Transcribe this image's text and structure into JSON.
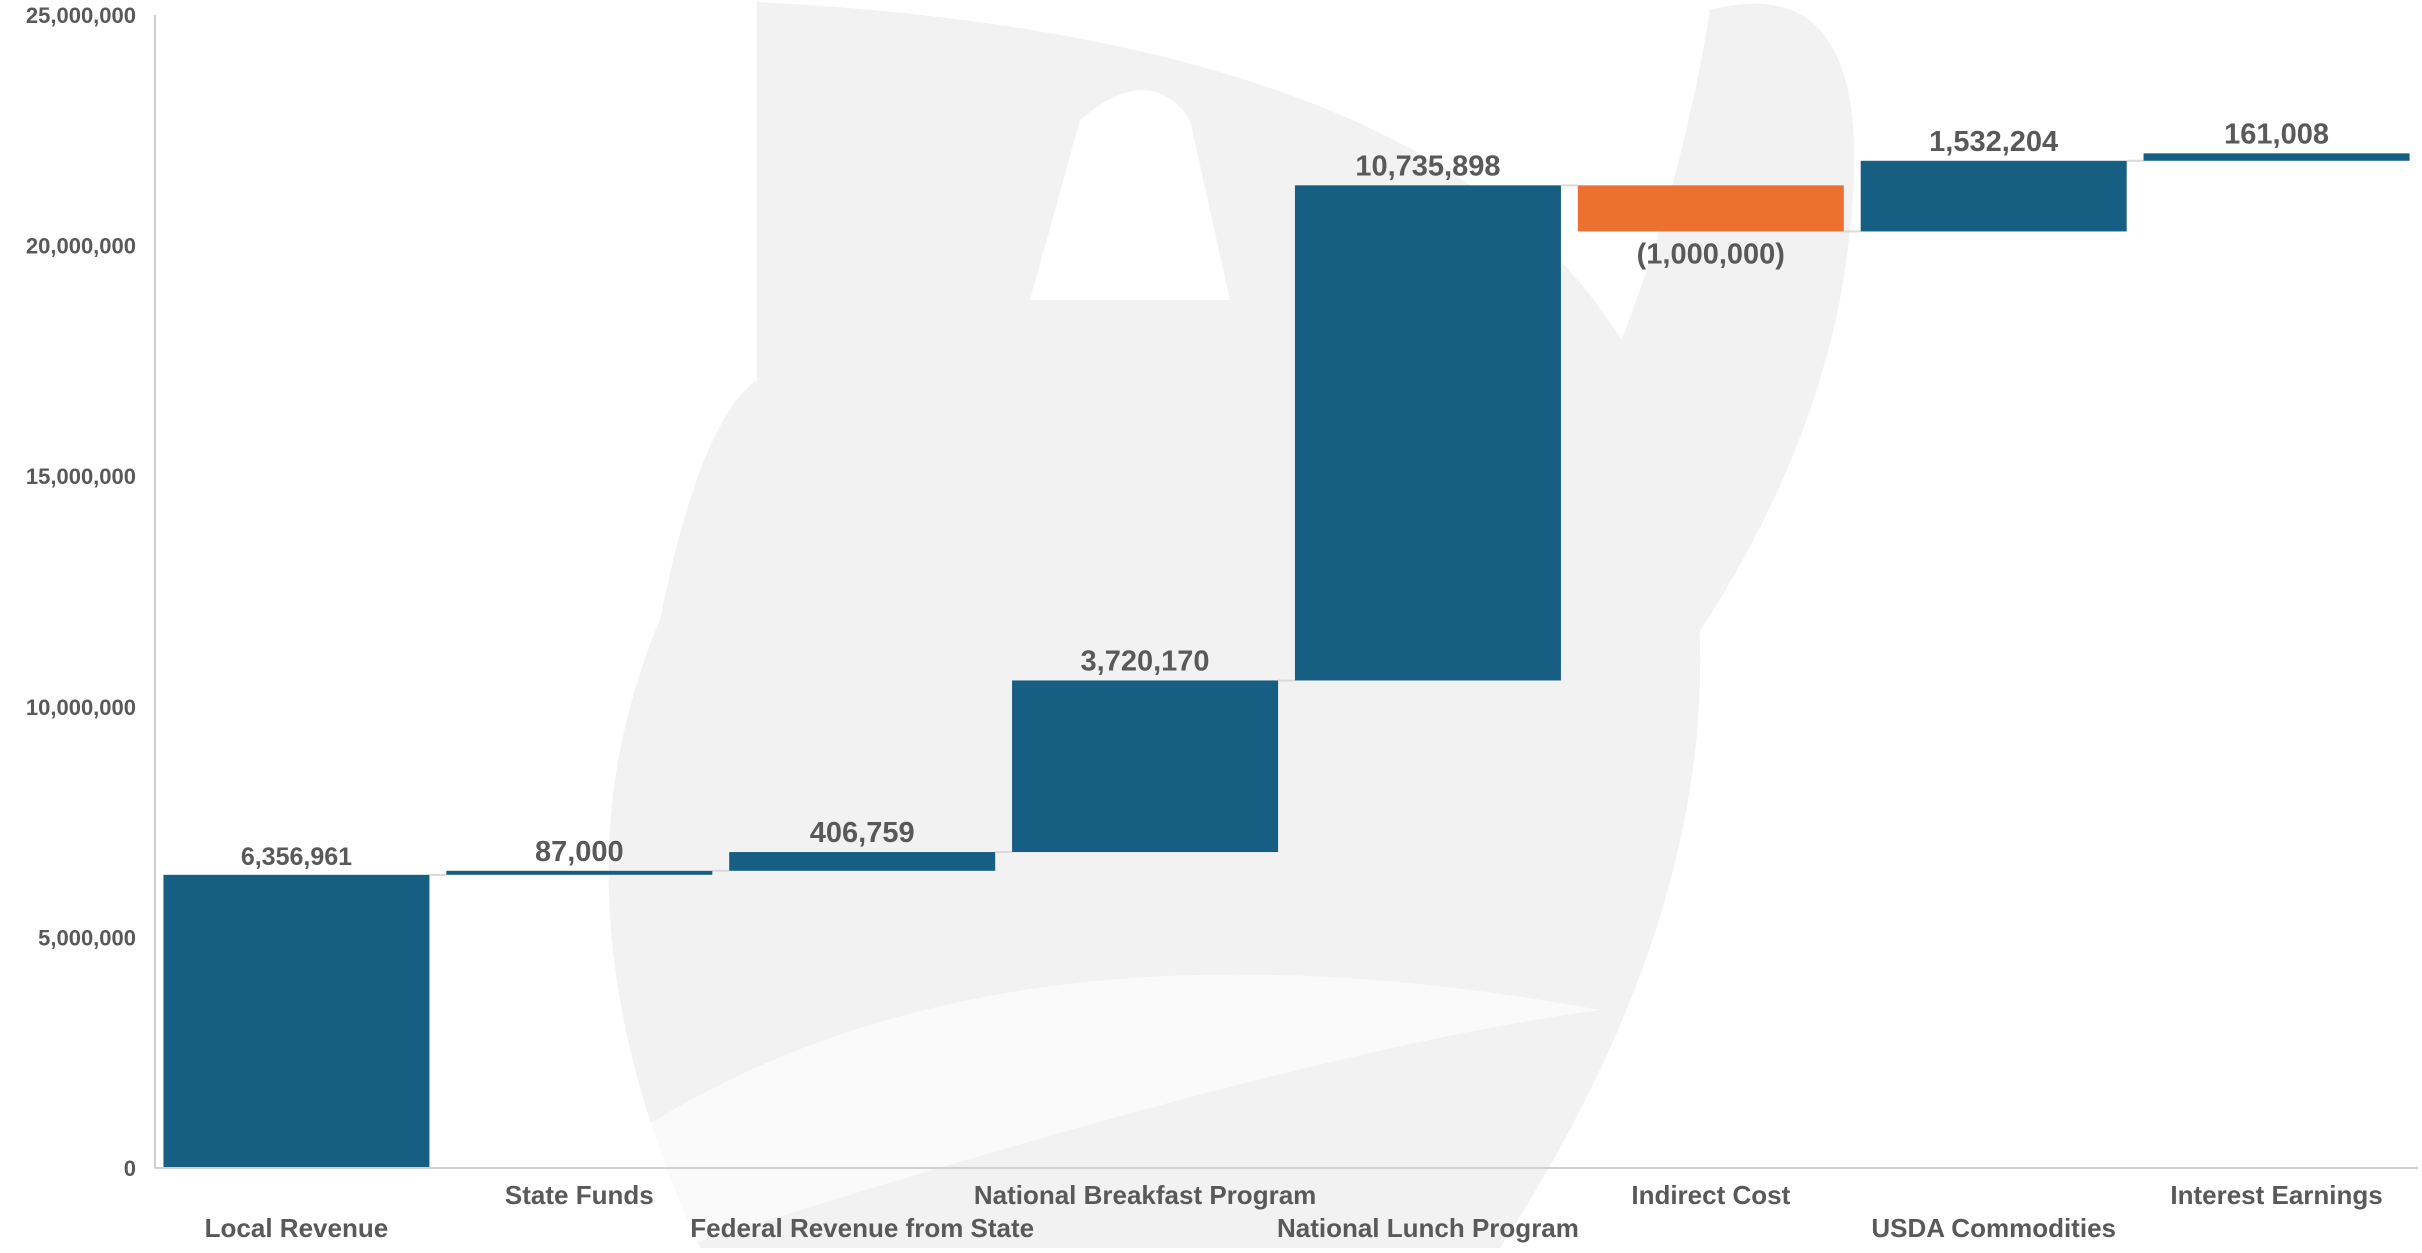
{
  "colors": {
    "increase": "#175E83",
    "decrease": "#EC7130",
    "axis": "#D0D0D0",
    "connector": "#D9D9D9",
    "label": "#595959",
    "watermark": "#F2F2F2"
  },
  "chart_data": {
    "type": "bar",
    "subtype": "waterfall",
    "title": "",
    "xlabel": "",
    "ylabel": "",
    "ylim": [
      0,
      25000000
    ],
    "y_ticks": [
      0,
      5000000,
      10000000,
      15000000,
      20000000,
      25000000
    ],
    "y_tick_labels": [
      "0",
      "5,000,000",
      "10,000,000",
      "15,000,000",
      "20,000,000",
      "25,000,000"
    ],
    "grid": false,
    "legend": "none",
    "categories": [
      "Local Revenue",
      "State Funds",
      "Federal Revenue from State",
      "National Breakfast Program",
      "National Lunch Program",
      "Indirect Cost",
      "USDA Commodities",
      "Interest Earnings"
    ],
    "values": [
      6356961,
      87000,
      406759,
      3720170,
      10735898,
      -1000000,
      1532204,
      161008
    ],
    "value_labels": [
      "6,356,961",
      "87,000",
      "406,759",
      "3,720,170",
      "10,735,898",
      "(1,000,000)",
      "1,532,204",
      "161,008"
    ]
  }
}
